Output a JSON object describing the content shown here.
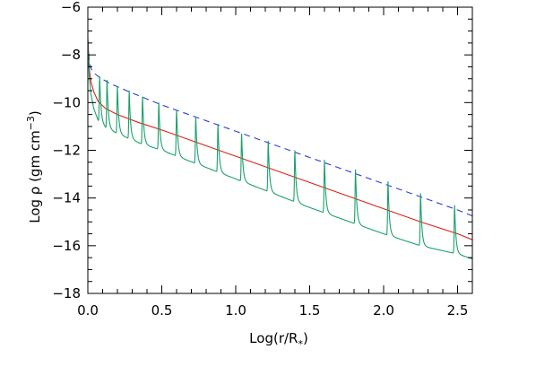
{
  "chart_data": {
    "type": "line",
    "xlabel_main": "Log(r/R",
    "xlabel_sub": "*",
    "xlabel_close": ")",
    "ylabel_main": "Log ρ  (gm cm",
    "ylabel_sup": "−3",
    "ylabel_close": ")",
    "xlim": [
      0.0,
      2.6
    ],
    "ylim": [
      -18,
      -6
    ],
    "x_ticks": [
      0.0,
      0.5,
      1.0,
      1.5,
      2.0,
      2.5
    ],
    "x_tick_labels": [
      "0.0",
      "0.5",
      "1.0",
      "1.5",
      "2.0",
      "2.5"
    ],
    "y_ticks": [
      -18,
      -16,
      -14,
      -12,
      -10,
      -8,
      -6
    ],
    "y_tick_labels": [
      "−18",
      "−16",
      "−14",
      "−12",
      "−10",
      "−8",
      "−6"
    ],
    "x_minor_step": 0.1,
    "y_minor_step": 0.5,
    "grid": false,
    "series": [
      {
        "key": "blue_dashed",
        "color": "#2a3fd6",
        "dash": true,
        "points": [
          [
            0.0,
            -7.5
          ],
          [
            0.01,
            -8.2
          ],
          [
            0.02,
            -8.55
          ],
          [
            0.04,
            -8.75
          ],
          [
            0.08,
            -8.95
          ],
          [
            0.15,
            -9.2
          ],
          [
            0.3,
            -9.6
          ],
          [
            0.5,
            -10.1
          ],
          [
            0.75,
            -10.65
          ],
          [
            1.0,
            -11.2
          ],
          [
            1.25,
            -11.75
          ],
          [
            1.5,
            -12.3
          ],
          [
            1.75,
            -12.85
          ],
          [
            2.0,
            -13.4
          ],
          [
            2.25,
            -13.95
          ],
          [
            2.5,
            -14.5
          ],
          [
            2.6,
            -14.75
          ]
        ]
      },
      {
        "key": "red_solid",
        "color": "#e0201b",
        "dash": false,
        "points": [
          [
            0.0,
            -7.3
          ],
          [
            0.01,
            -8.6
          ],
          [
            0.02,
            -9.1
          ],
          [
            0.04,
            -9.55
          ],
          [
            0.07,
            -9.95
          ],
          [
            0.12,
            -10.25
          ],
          [
            0.2,
            -10.5
          ],
          [
            0.35,
            -10.85
          ],
          [
            0.5,
            -11.15
          ],
          [
            0.75,
            -11.7
          ],
          [
            1.0,
            -12.25
          ],
          [
            1.25,
            -12.8
          ],
          [
            1.5,
            -13.35
          ],
          [
            1.75,
            -13.9
          ],
          [
            2.0,
            -14.45
          ],
          [
            2.25,
            -15.0
          ],
          [
            2.5,
            -15.5
          ],
          [
            2.6,
            -15.75
          ]
        ]
      },
      {
        "key": "green_spiky",
        "color": "#1aa06a",
        "dash": false,
        "base_points": [
          [
            0.0,
            -7.4
          ],
          [
            0.01,
            -8.9
          ],
          [
            0.02,
            -9.6
          ],
          [
            0.04,
            -10.25
          ],
          [
            0.07,
            -10.75
          ],
          [
            0.12,
            -11.05
          ],
          [
            0.2,
            -11.3
          ],
          [
            0.35,
            -11.7
          ],
          [
            0.5,
            -12.0
          ],
          [
            0.75,
            -12.6
          ],
          [
            1.0,
            -13.2
          ],
          [
            1.25,
            -13.8
          ],
          [
            1.5,
            -14.4
          ],
          [
            1.75,
            -14.95
          ],
          [
            2.0,
            -15.5
          ],
          [
            2.25,
            -16.0
          ],
          [
            2.5,
            -16.35
          ],
          [
            2.6,
            -16.55
          ]
        ],
        "spike_x": [
          0.08,
          0.13,
          0.2,
          0.28,
          0.37,
          0.48,
          0.6,
          0.73,
          0.88,
          1.04,
          1.22,
          1.4,
          1.6,
          1.81,
          2.03,
          2.25,
          2.48
        ],
        "spike_peak_y": [
          -8.9,
          -9.05,
          -9.3,
          -9.5,
          -9.75,
          -10.0,
          -10.3,
          -10.6,
          -10.9,
          -11.3,
          -11.6,
          -12.0,
          -12.4,
          -12.8,
          -13.3,
          -13.8,
          -14.3
        ]
      }
    ]
  }
}
